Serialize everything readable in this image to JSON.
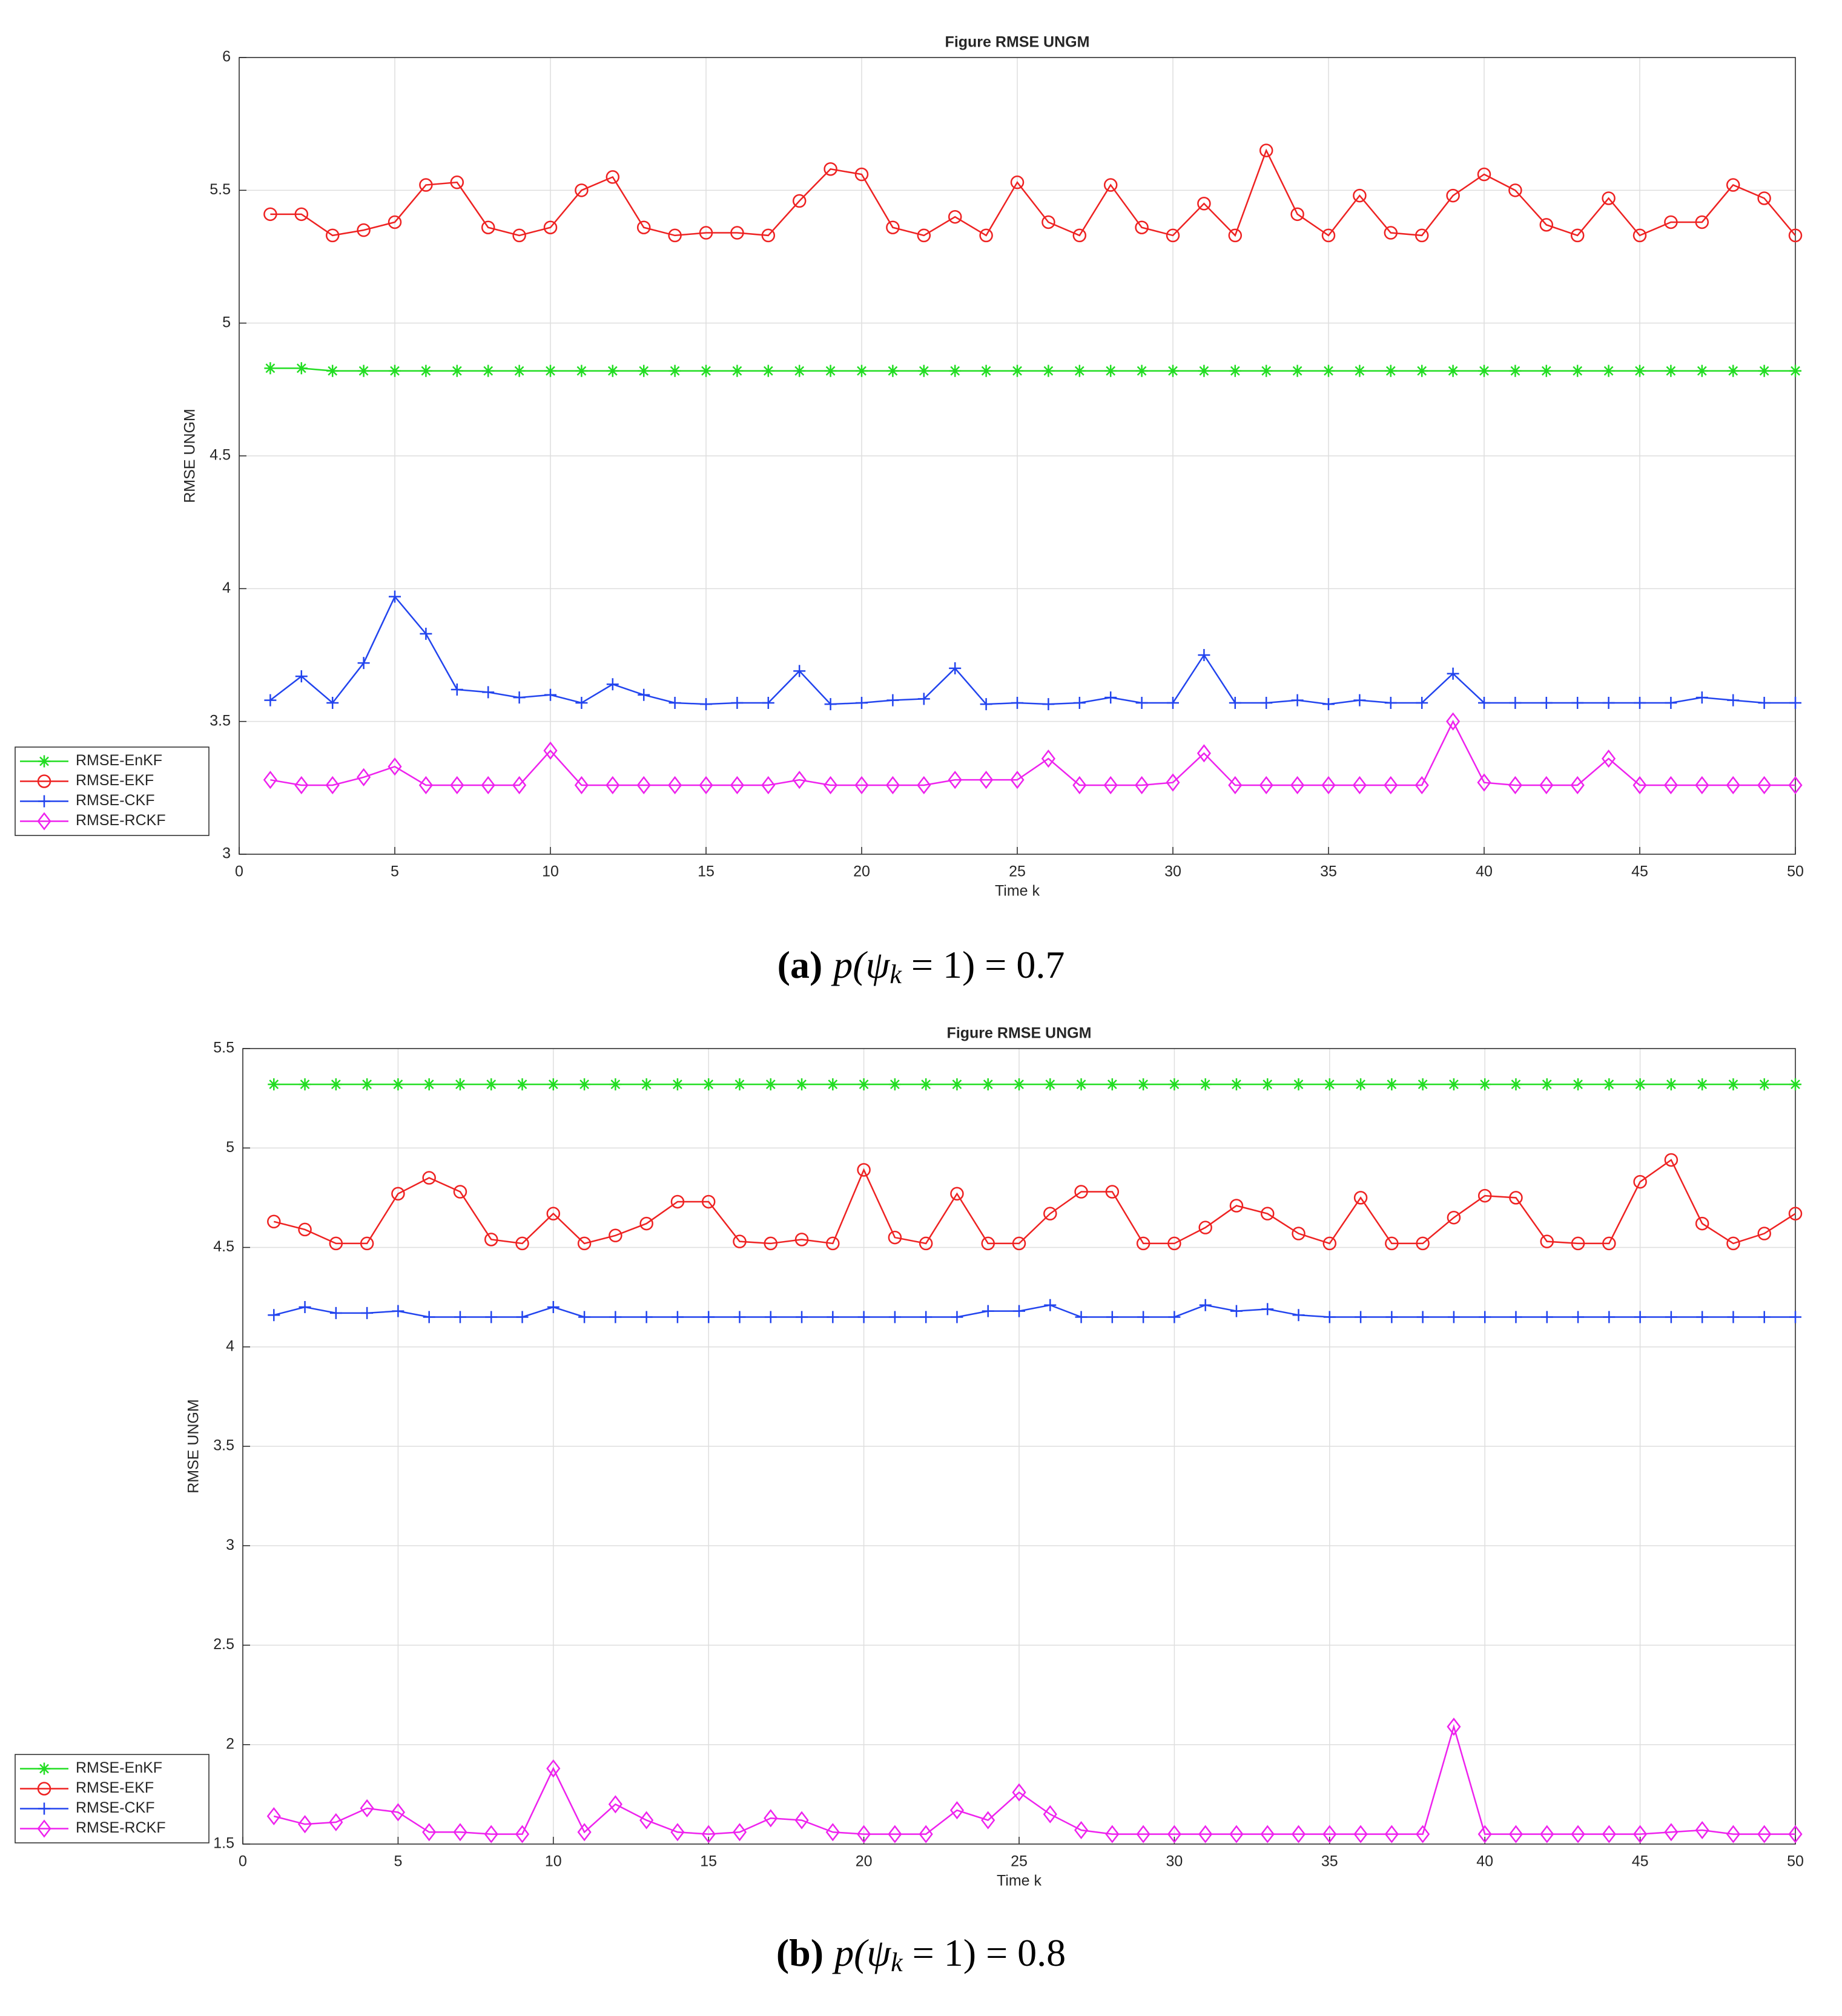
{
  "chart_data": [
    {
      "type": "line",
      "title": "Figure RMSE  UNGM",
      "xlabel": "Time k",
      "ylabel": "RMSE  UNGM",
      "caption_label": "(a)",
      "caption_main": "p(ψ",
      "caption_sub": "k",
      "caption_rest": " = 1) = 0.7",
      "x": [
        1,
        2,
        3,
        4,
        5,
        6,
        7,
        8,
        9,
        10,
        11,
        12,
        13,
        14,
        15,
        16,
        17,
        18,
        19,
        20,
        21,
        22,
        23,
        24,
        25,
        26,
        27,
        28,
        29,
        30,
        31,
        32,
        33,
        34,
        35,
        36,
        37,
        38,
        39,
        40,
        41,
        42,
        43,
        44,
        45,
        46,
        47,
        48,
        49,
        50
      ],
      "xlim": [
        0,
        50
      ],
      "xticks": [
        0,
        5,
        10,
        15,
        20,
        25,
        30,
        35,
        40,
        45,
        50
      ],
      "ylim": [
        3,
        6
      ],
      "yticks": [
        3,
        3.5,
        4,
        4.5,
        5,
        5.5,
        6
      ],
      "grid": true,
      "legend": "outside-lower-left",
      "series": [
        {
          "name": "RMSE-EnKF",
          "color": "#22dd22",
          "marker": "star",
          "values": [
            4.83,
            4.83,
            4.82,
            4.82,
            4.82,
            4.82,
            4.82,
            4.82,
            4.82,
            4.82,
            4.82,
            4.82,
            4.82,
            4.82,
            4.82,
            4.82,
            4.82,
            4.82,
            4.82,
            4.82,
            4.82,
            4.82,
            4.82,
            4.82,
            4.82,
            4.82,
            4.82,
            4.82,
            4.82,
            4.82,
            4.82,
            4.82,
            4.82,
            4.82,
            4.82,
            4.82,
            4.82,
            4.82,
            4.82,
            4.82,
            4.82,
            4.82,
            4.82,
            4.82,
            4.82,
            4.82,
            4.82,
            4.82,
            4.82,
            4.82
          ]
        },
        {
          "name": "RMSE-EKF",
          "color": "#ee2222",
          "marker": "circle",
          "values": [
            5.41,
            5.41,
            5.33,
            5.35,
            5.38,
            5.52,
            5.53,
            5.36,
            5.33,
            5.36,
            5.5,
            5.55,
            5.36,
            5.33,
            5.34,
            5.34,
            5.33,
            5.46,
            5.58,
            5.56,
            5.36,
            5.33,
            5.4,
            5.33,
            5.53,
            5.38,
            5.33,
            5.52,
            5.36,
            5.33,
            5.45,
            5.33,
            5.65,
            5.41,
            5.33,
            5.48,
            5.34,
            5.33,
            5.48,
            5.56,
            5.5,
            5.37,
            5.33,
            5.47,
            5.33,
            5.38,
            5.38,
            5.52,
            5.47,
            5.33
          ]
        },
        {
          "name": "RMSE-CKF",
          "color": "#2244ee",
          "marker": "plus",
          "values": [
            3.58,
            3.67,
            3.57,
            3.72,
            3.97,
            3.83,
            3.62,
            3.61,
            3.59,
            3.6,
            3.57,
            3.64,
            3.6,
            3.57,
            3.565,
            3.57,
            3.57,
            3.69,
            3.565,
            3.57,
            3.58,
            3.585,
            3.7,
            3.565,
            3.57,
            3.565,
            3.57,
            3.59,
            3.57,
            3.57,
            3.75,
            3.57,
            3.57,
            3.58,
            3.565,
            3.58,
            3.57,
            3.57,
            3.68,
            3.57,
            3.57,
            3.57,
            3.57,
            3.57,
            3.57,
            3.57,
            3.59,
            3.58,
            3.57,
            3.57
          ]
        },
        {
          "name": "RMSE-RCKF",
          "color": "#ee22ee",
          "marker": "diamond",
          "values": [
            3.28,
            3.26,
            3.26,
            3.29,
            3.33,
            3.26,
            3.26,
            3.26,
            3.26,
            3.39,
            3.26,
            3.26,
            3.26,
            3.26,
            3.26,
            3.26,
            3.26,
            3.28,
            3.26,
            3.26,
            3.26,
            3.26,
            3.28,
            3.28,
            3.28,
            3.36,
            3.26,
            3.26,
            3.26,
            3.27,
            3.38,
            3.26,
            3.26,
            3.26,
            3.26,
            3.26,
            3.26,
            3.26,
            3.5,
            3.27,
            3.26,
            3.26,
            3.26,
            3.36,
            3.26,
            3.26,
            3.26,
            3.26,
            3.26,
            3.26
          ]
        }
      ]
    },
    {
      "type": "line",
      "title": "Figure RMSE  UNGM",
      "xlabel": "Time k",
      "ylabel": "RMSE  UNGM",
      "caption_label": "(b)",
      "caption_main": "p(ψ",
      "caption_sub": "k",
      "caption_rest": " = 1) = 0.8",
      "x": [
        1,
        2,
        3,
        4,
        5,
        6,
        7,
        8,
        9,
        10,
        11,
        12,
        13,
        14,
        15,
        16,
        17,
        18,
        19,
        20,
        21,
        22,
        23,
        24,
        25,
        26,
        27,
        28,
        29,
        30,
        31,
        32,
        33,
        34,
        35,
        36,
        37,
        38,
        39,
        40,
        41,
        42,
        43,
        44,
        45,
        46,
        47,
        48,
        49,
        50
      ],
      "xlim": [
        0,
        50
      ],
      "xticks": [
        0,
        5,
        10,
        15,
        20,
        25,
        30,
        35,
        40,
        45,
        50
      ],
      "ylim": [
        1.5,
        5.5
      ],
      "yticks": [
        1.5,
        2,
        2.5,
        3,
        3.5,
        4,
        4.5,
        5,
        5.5
      ],
      "grid": true,
      "legend": "outside-lower-left",
      "series": [
        {
          "name": "RMSE-EnKF",
          "color": "#22dd22",
          "marker": "star",
          "values": [
            5.32,
            5.32,
            5.32,
            5.32,
            5.32,
            5.32,
            5.32,
            5.32,
            5.32,
            5.32,
            5.32,
            5.32,
            5.32,
            5.32,
            5.32,
            5.32,
            5.32,
            5.32,
            5.32,
            5.32,
            5.32,
            5.32,
            5.32,
            5.32,
            5.32,
            5.32,
            5.32,
            5.32,
            5.32,
            5.32,
            5.32,
            5.32,
            5.32,
            5.32,
            5.32,
            5.32,
            5.32,
            5.32,
            5.32,
            5.32,
            5.32,
            5.32,
            5.32,
            5.32,
            5.32,
            5.32,
            5.32,
            5.32,
            5.32,
            5.32
          ]
        },
        {
          "name": "RMSE-EKF",
          "color": "#ee2222",
          "marker": "circle",
          "values": [
            4.63,
            4.59,
            4.52,
            4.52,
            4.77,
            4.85,
            4.78,
            4.54,
            4.52,
            4.67,
            4.52,
            4.56,
            4.62,
            4.73,
            4.73,
            4.53,
            4.52,
            4.54,
            4.52,
            4.89,
            4.55,
            4.52,
            4.77,
            4.52,
            4.52,
            4.67,
            4.78,
            4.78,
            4.52,
            4.52,
            4.6,
            4.71,
            4.67,
            4.57,
            4.52,
            4.75,
            4.52,
            4.52,
            4.65,
            4.76,
            4.75,
            4.53,
            4.52,
            4.52,
            4.83,
            4.94,
            4.62,
            4.52,
            4.57,
            4.67
          ]
        },
        {
          "name": "RMSE-CKF",
          "color": "#2244ee",
          "marker": "plus",
          "values": [
            4.16,
            4.2,
            4.17,
            4.17,
            4.18,
            4.15,
            4.15,
            4.15,
            4.15,
            4.2,
            4.15,
            4.15,
            4.15,
            4.15,
            4.15,
            4.15,
            4.15,
            4.15,
            4.15,
            4.15,
            4.15,
            4.15,
            4.15,
            4.18,
            4.18,
            4.21,
            4.15,
            4.15,
            4.15,
            4.15,
            4.21,
            4.18,
            4.19,
            4.16,
            4.15,
            4.15,
            4.15,
            4.15,
            4.15,
            4.15,
            4.15,
            4.15,
            4.15,
            4.15,
            4.15,
            4.15,
            4.15,
            4.15,
            4.15,
            4.15
          ]
        },
        {
          "name": "RMSE-RCKF",
          "color": "#ee22ee",
          "marker": "diamond",
          "values": [
            1.64,
            1.6,
            1.61,
            1.68,
            1.66,
            1.56,
            1.56,
            1.55,
            1.55,
            1.88,
            1.56,
            1.7,
            1.62,
            1.56,
            1.55,
            1.56,
            1.63,
            1.62,
            1.56,
            1.55,
            1.55,
            1.55,
            1.67,
            1.62,
            1.76,
            1.65,
            1.57,
            1.55,
            1.55,
            1.55,
            1.55,
            1.55,
            1.55,
            1.55,
            1.55,
            1.55,
            1.55,
            1.55,
            2.09,
            1.55,
            1.55,
            1.55,
            1.55,
            1.55,
            1.55,
            1.56,
            1.57,
            1.55,
            1.55,
            1.55
          ]
        }
      ]
    }
  ]
}
